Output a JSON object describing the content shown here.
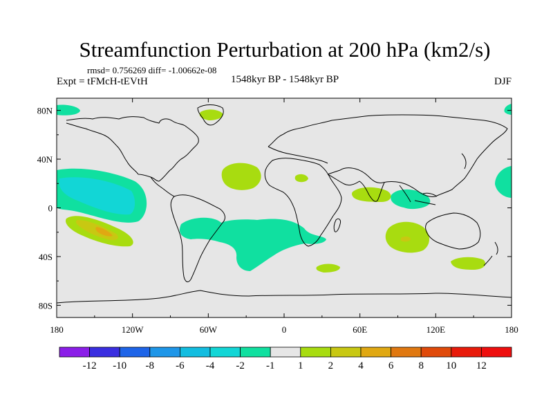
{
  "chart_data": {
    "type": "map",
    "title": "Streamfunction Perturbation at 200 hPa (km2/s)",
    "stats": "rmsd= 0.756269 diff= -1.00662e-08",
    "left_label": "Expt = tFMcH-tEVtH",
    "center_label": "1548kyr BP - 1548kyr BP",
    "right_label": "DJF",
    "lon_ticks": [
      "180",
      "120W",
      "60W",
      "0",
      "60E",
      "120E",
      "180"
    ],
    "lat_ticks": [
      "80N",
      "40N",
      "0",
      "40S",
      "80S"
    ],
    "lon_range": [
      -180,
      180
    ],
    "lat_range": [
      -90,
      90
    ],
    "colorbar": {
      "labels": [
        "-12",
        "-10",
        "-8",
        "-6",
        "-4",
        "-2",
        "-1",
        "1",
        "2",
        "4",
        "6",
        "8",
        "10",
        "12"
      ],
      "colors": [
        "#8b1ee8",
        "#3a2ee0",
        "#1e64e8",
        "#1e96e8",
        "#12bde0",
        "#12d6d6",
        "#10e0a0",
        "#e6e6e6",
        "#a8dc10",
        "#c8c812",
        "#e0a812",
        "#e07810",
        "#e04a0a",
        "#e81a0a",
        "#ee0e0e"
      ]
    },
    "anomaly_regions": [
      {
        "name": "north-pacific-east",
        "lon": -150,
        "lat": 12,
        "value_class": "-2 to -1",
        "core_value_class": "-4 to -2"
      },
      {
        "name": "south-pacific",
        "lon": -145,
        "lat": -22,
        "value_class": "1 to 2",
        "core_value_class": "4 to 6"
      },
      {
        "name": "south-america-atlantic",
        "lon": -40,
        "lat": -25,
        "value_class": "-2 to -1"
      },
      {
        "name": "north-atlantic",
        "lon": -40,
        "lat": 22,
        "value_class": "1 to 2"
      },
      {
        "name": "greenland",
        "lon": -40,
        "lat": 74,
        "value_class": "1 to 2"
      },
      {
        "name": "arctic-west",
        "lon": -170,
        "lat": 75,
        "value_class": "-2 to -1"
      },
      {
        "name": "arctic-east",
        "lon": 178,
        "lat": 75,
        "value_class": "-2 to -1"
      },
      {
        "name": "west-pacific",
        "lon": 175,
        "lat": 15,
        "value_class": "-2 to -1"
      },
      {
        "name": "indian-ocean-north",
        "lon": 75,
        "lat": 8,
        "value_class": "1 to 2"
      },
      {
        "name": "indonesia",
        "lon": 110,
        "lat": 0,
        "value_class": "-2 to -1"
      },
      {
        "name": "indian-ocean-south",
        "lon": 92,
        "lat": -25,
        "value_class": "1 to 2",
        "core_value_class": "2 to 4"
      },
      {
        "name": "south-east-pacific-australia",
        "lon": 148,
        "lat": -46,
        "value_class": "1 to 2"
      },
      {
        "name": "southern-atlantic",
        "lon": 35,
        "lat": -50,
        "value_class": "1 to 2"
      },
      {
        "name": "africa-north",
        "lon": 15,
        "lat": 21,
        "value_class": "1 to 2"
      }
    ]
  }
}
